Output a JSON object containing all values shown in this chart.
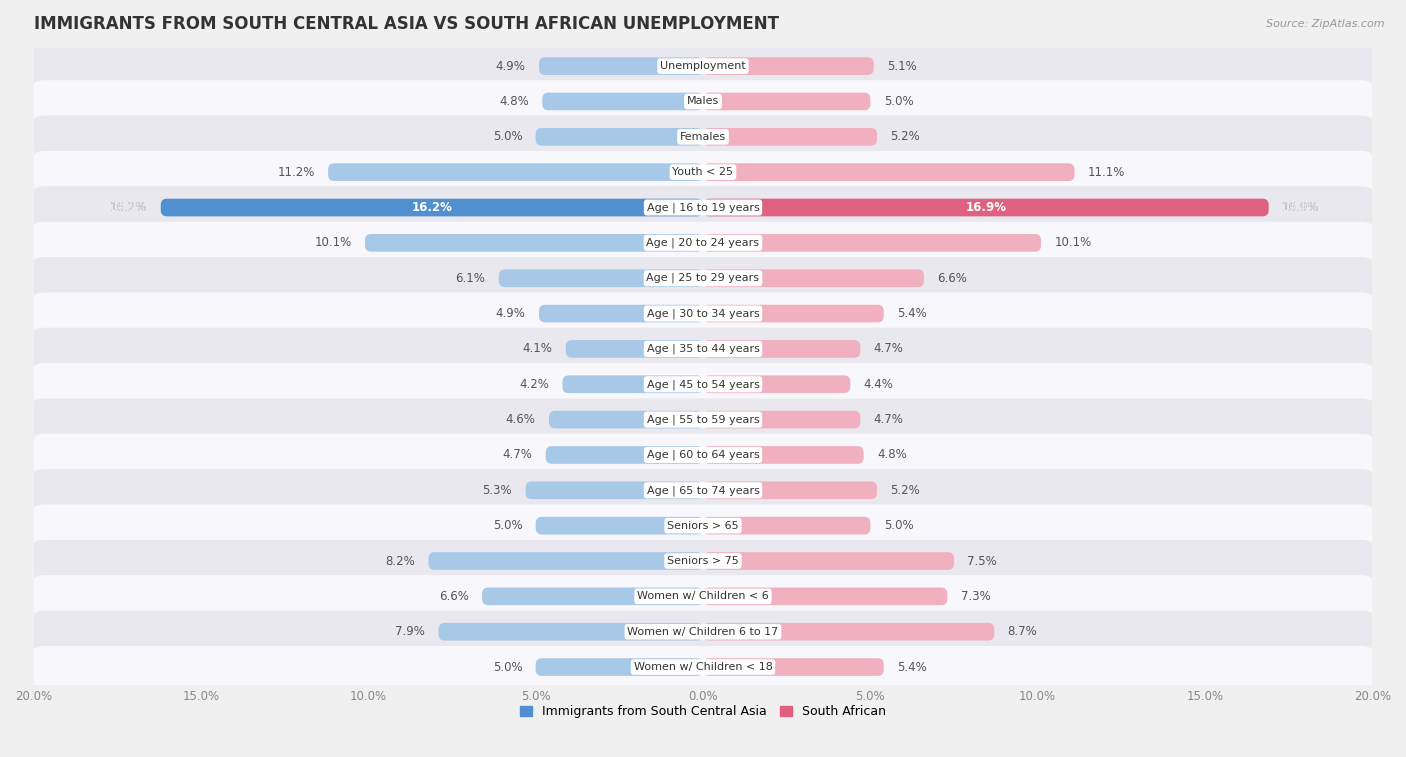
{
  "title": "IMMIGRANTS FROM SOUTH CENTRAL ASIA VS SOUTH AFRICAN UNEMPLOYMENT",
  "source": "Source: ZipAtlas.com",
  "categories": [
    "Unemployment",
    "Males",
    "Females",
    "Youth < 25",
    "Age | 16 to 19 years",
    "Age | 20 to 24 years",
    "Age | 25 to 29 years",
    "Age | 30 to 34 years",
    "Age | 35 to 44 years",
    "Age | 45 to 54 years",
    "Age | 55 to 59 years",
    "Age | 60 to 64 years",
    "Age | 65 to 74 years",
    "Seniors > 65",
    "Seniors > 75",
    "Women w/ Children < 6",
    "Women w/ Children 6 to 17",
    "Women w/ Children < 18"
  ],
  "left_values": [
    4.9,
    4.8,
    5.0,
    11.2,
    16.2,
    10.1,
    6.1,
    4.9,
    4.1,
    4.2,
    4.6,
    4.7,
    5.3,
    5.0,
    8.2,
    6.6,
    7.9,
    5.0
  ],
  "right_values": [
    5.1,
    5.0,
    5.2,
    11.1,
    16.9,
    10.1,
    6.6,
    5.4,
    4.7,
    4.4,
    4.7,
    4.8,
    5.2,
    5.0,
    7.5,
    7.3,
    8.7,
    5.4
  ],
  "left_color": "#a8c8e8",
  "right_color": "#f0b0c0",
  "left_highlight_color": "#5090d0",
  "right_highlight_color": "#e06080",
  "highlight_index": 4,
  "bar_height": 0.5,
  "xlim": 20.0,
  "bg_color": "#f0f0f0",
  "row_alt_color": "#e8e8ee",
  "row_base_color": "#f8f8fc",
  "legend_left": "Immigrants from South Central Asia",
  "legend_right": "South African",
  "title_fontsize": 12,
  "value_fontsize": 8.5,
  "cat_fontsize": 8.0
}
